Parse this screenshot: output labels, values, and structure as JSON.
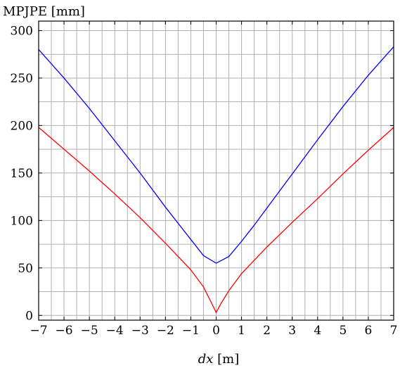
{
  "chart_data": {
    "type": "line",
    "title": "",
    "ylabel": "MPJPE [mm]",
    "xlabel_var": "dx",
    "xlabel_unit": " [m]",
    "xlim": [
      -7,
      7
    ],
    "ylim": [
      -5,
      310
    ],
    "xticks": [
      -7,
      -6,
      -5,
      -4,
      -3,
      -2,
      -1,
      0,
      1,
      2,
      3,
      4,
      5,
      6,
      7
    ],
    "xtick_labels": [
      "−7",
      "−6",
      "−5",
      "−4",
      "−3",
      "−2",
      "−1",
      "0",
      "1",
      "2",
      "3",
      "4",
      "5",
      "6",
      "7"
    ],
    "yticks": [
      0,
      50,
      100,
      150,
      200,
      250,
      300
    ],
    "ytick_labels": [
      "0",
      "50",
      "100",
      "150",
      "200",
      "250",
      "300"
    ],
    "x_minor_step": 0.5,
    "y_minor_step": 25,
    "grid": true,
    "series": [
      {
        "color": "#0000ff",
        "x": [
          -7,
          -6,
          -5,
          -4,
          -3,
          -2,
          -1.5,
          -1,
          -0.5,
          0,
          0.5,
          1,
          1.5,
          2,
          3,
          4,
          5,
          6,
          7
        ],
        "y": [
          280,
          250,
          218,
          184,
          150,
          114,
          97,
          80,
          63,
          55,
          62,
          78,
          95,
          113,
          149,
          185,
          220,
          253,
          283
        ]
      },
      {
        "color": "#ff0000",
        "x": [
          -7,
          -6,
          -5,
          -4,
          -3,
          -2,
          -1,
          -0.5,
          -0.2,
          0,
          0.2,
          0.5,
          1,
          2,
          3,
          4,
          5,
          6,
          7
        ],
        "y": [
          198,
          175,
          152,
          128,
          103,
          76,
          48,
          30,
          14,
          3,
          13,
          26,
          44,
          72,
          98,
          123,
          149,
          174,
          198
        ]
      }
    ]
  }
}
